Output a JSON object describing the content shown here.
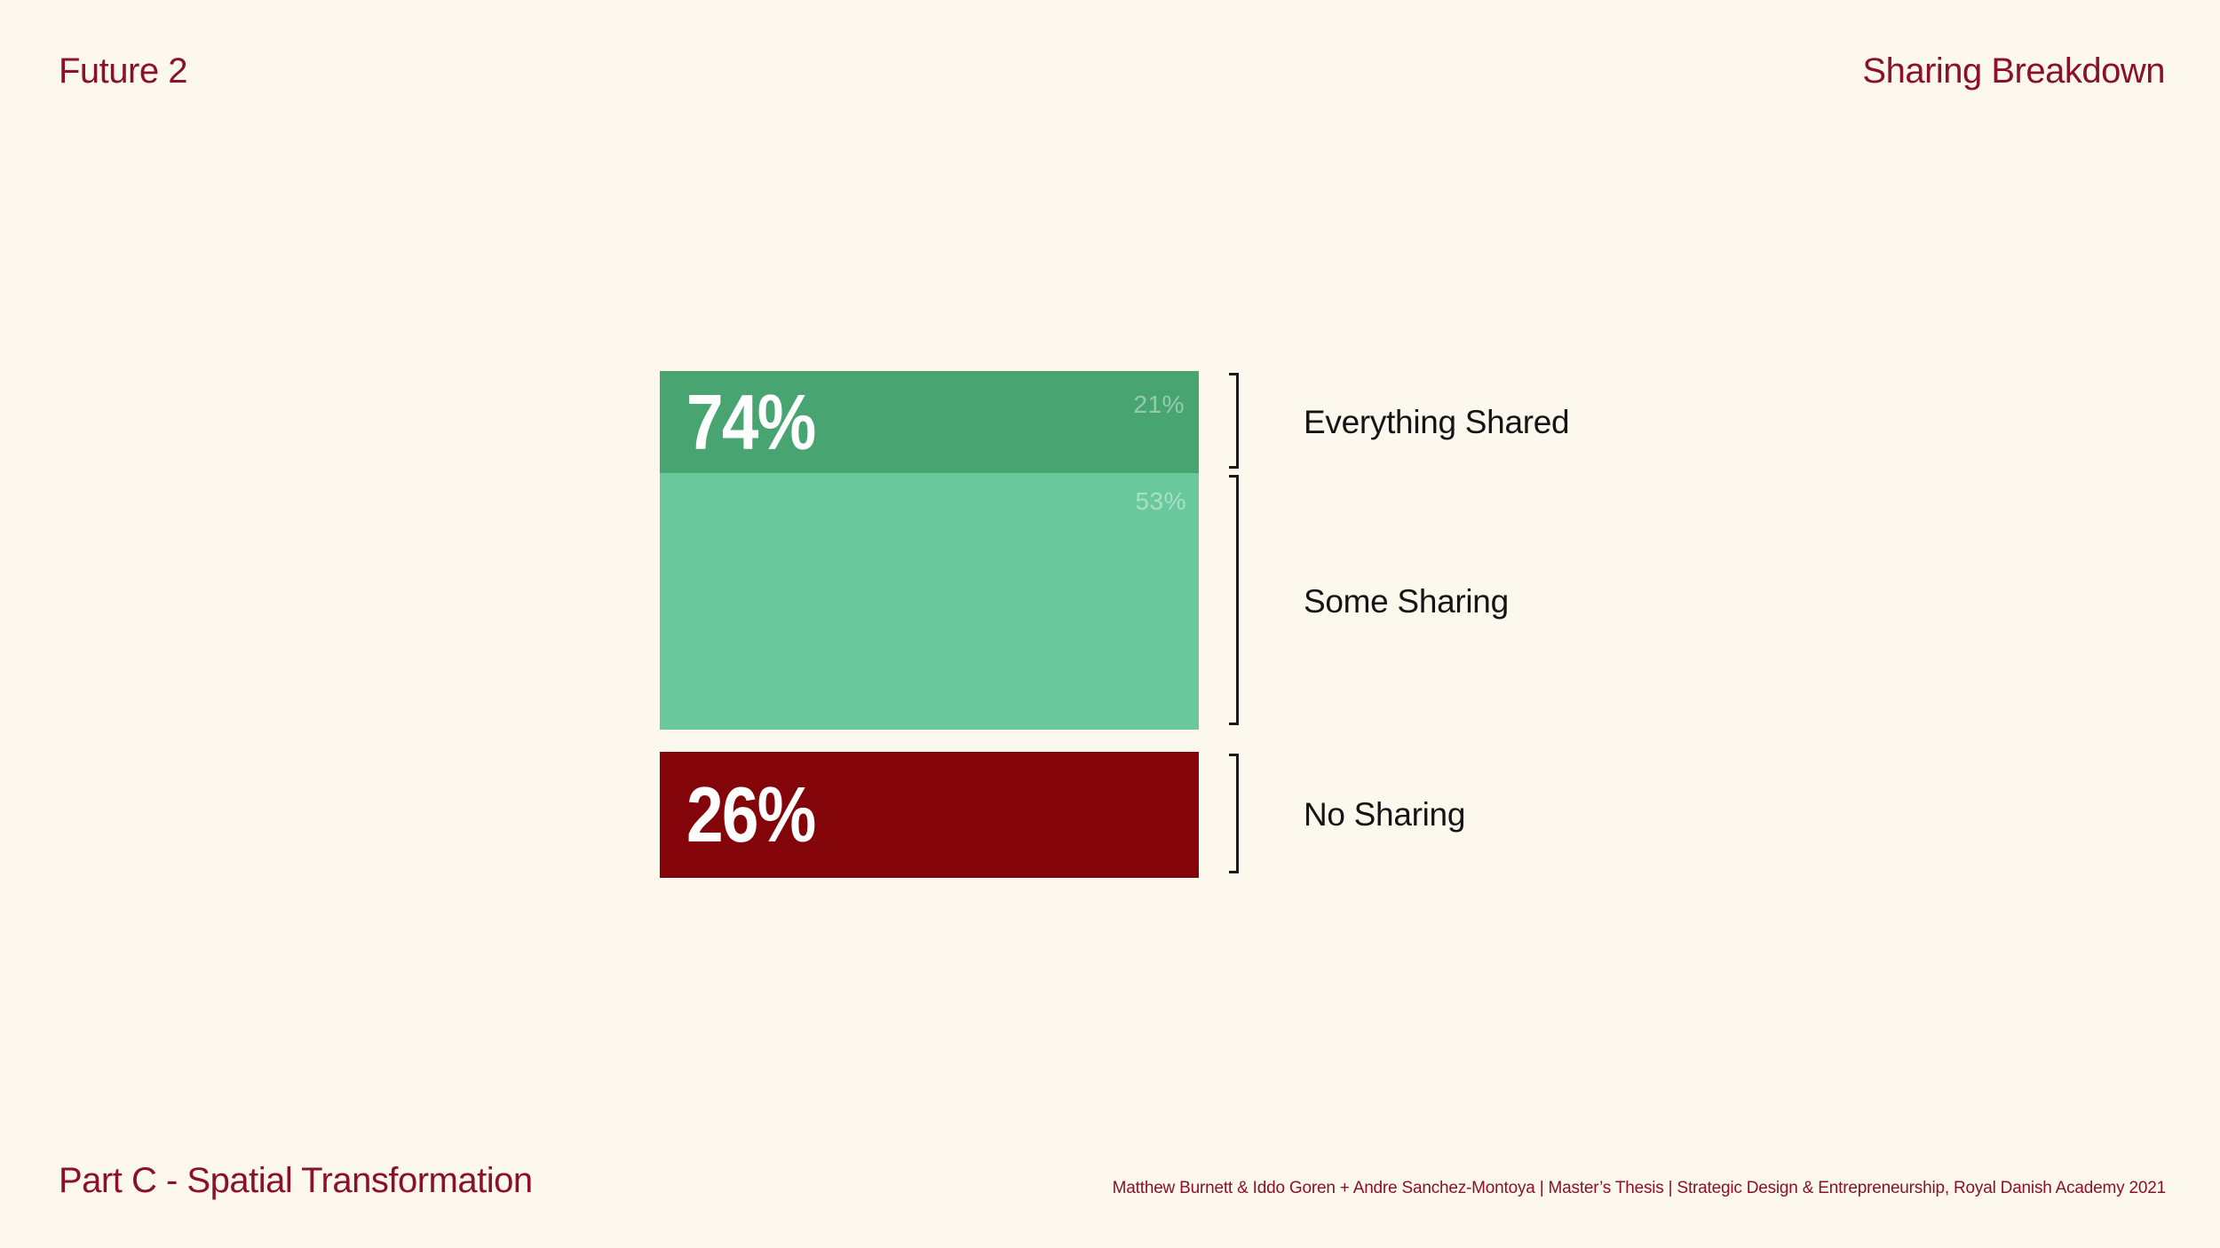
{
  "slide": {
    "title": "Future 2",
    "heading_right": "Sharing Breakdown",
    "footer_title": "Part C - Spatial Transformation",
    "attribution": "Matthew Burnett & Iddo Goren +  Andre Sanchez-Montoya | Master’s Thesis | Strategic Design & Entrepreneurship, Royal Danish Academy 2021"
  },
  "colors": {
    "background": "#fcf8ee",
    "heading_red": "#8a1128",
    "segment_dark_green": "#48a572",
    "segment_light_green": "#69c99d",
    "segment_red": "#840509",
    "label_text": "#141414",
    "bracket_black": "#1a1a1a"
  },
  "chart_data": {
    "type": "bar",
    "title": "Sharing Breakdown",
    "orientation": "vertical-stacked-segments",
    "unit": "percent",
    "legend_position": "right-brackets",
    "grid": false,
    "groups": [
      {
        "name": "Shared",
        "total_value": 74,
        "total_label": "74%",
        "segments": [
          {
            "label": "Everything Shared",
            "value": 21,
            "pct_label": "21%",
            "color": "#48a572"
          },
          {
            "label": "Some Sharing",
            "value": 53,
            "pct_label": "53%",
            "color": "#69c99d"
          }
        ]
      },
      {
        "name": "No Sharing",
        "total_value": 26,
        "total_label": "26%",
        "segments": [
          {
            "label": "No Sharing",
            "value": 26,
            "pct_label": "26%",
            "color": "#840509"
          }
        ]
      }
    ]
  }
}
